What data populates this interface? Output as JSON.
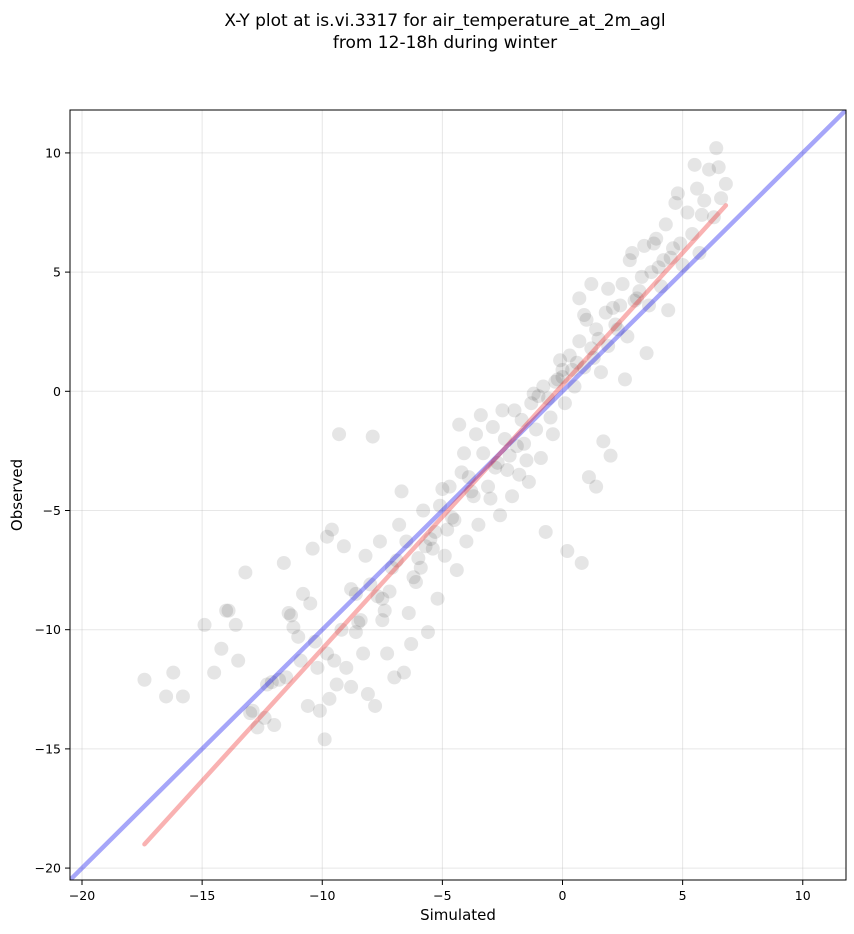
{
  "chart_data": {
    "type": "scatter",
    "title": [
      "X-Y plot at is.vi.3317 for air_temperature_at_2m_agl",
      "from 12-18h during winter"
    ],
    "xlabel": "Simulated",
    "ylabel": "Observed",
    "xlim": [
      -20.5,
      11.8
    ],
    "ylim": [
      -20.5,
      11.8
    ],
    "xticks": [
      -20,
      -15,
      -10,
      -5,
      0,
      5,
      10
    ],
    "yticks": [
      -20,
      -15,
      -10,
      -5,
      0,
      5,
      10
    ],
    "xtick_labels": [
      "−20",
      "−15",
      "−10",
      "−5",
      "0",
      "5",
      "10"
    ],
    "ytick_labels": [
      "−20",
      "−15",
      "−10",
      "−5",
      "0",
      "5",
      "10"
    ],
    "grid": true,
    "marker_color": "#000000",
    "marker_alpha": 0.1,
    "points": {
      "x": [
        -17.4,
        -16.5,
        -16.2,
        -15.8,
        -14.5,
        -14.2,
        -14.0,
        -13.6,
        -13.5,
        -13.2,
        -12.9,
        -12.7,
        -12.4,
        -12.1,
        -11.8,
        -11.6,
        -11.4,
        -11.3,
        -11.0,
        -10.9,
        -10.6,
        -10.4,
        -10.3,
        -10.1,
        -9.9,
        -9.8,
        -9.6,
        -9.4,
        -9.2,
        -9.1,
        -9.0,
        -8.8,
        -8.6,
        -8.5,
        -8.3,
        -8.1,
        -8.0,
        -7.8,
        -7.6,
        -7.5,
        -7.3,
        -7.1,
        -7.0,
        -6.8,
        -6.6,
        -6.4,
        -6.3,
        -6.1,
        -5.9,
        -5.8,
        -5.6,
        -5.4,
        -5.2,
        -5.1,
        -4.9,
        -4.7,
        -4.5,
        -4.4,
        -4.2,
        -4.0,
        -3.8,
        -3.6,
        -3.5,
        -3.3,
        -3.1,
        -2.9,
        -2.7,
        -2.6,
        -2.4,
        -2.2,
        -2.0,
        -1.8,
        -1.7,
        -1.5,
        -1.3,
        -1.1,
        -0.9,
        -0.8,
        -0.6,
        -0.4,
        -0.2,
        0.0,
        0.1,
        0.3,
        0.5,
        0.7,
        0.9,
        1.0,
        1.2,
        1.4,
        1.6,
        1.8,
        1.9,
        2.1,
        2.3,
        2.5,
        2.7,
        2.8,
        3.0,
        3.2,
        3.4,
        3.6,
        3.7,
        3.9,
        4.1,
        4.3,
        4.5,
        4.6,
        4.8,
        5.0,
        5.2,
        5.4,
        5.5,
        5.7,
        5.9,
        6.1,
        6.3,
        6.4,
        6.6,
        6.8,
        -9.3,
        -7.9,
        -14.9,
        -13.9,
        -8.8,
        -9.8,
        -10.5,
        -7.5,
        -6.0,
        -11.2,
        -12.3,
        -10.8,
        -8.2,
        -7.2,
        -5.5,
        -4.8,
        -3.9,
        -3.0,
        -2.3,
        -1.6,
        -0.5,
        0.4,
        1.3,
        2.2,
        3.1,
        4.0,
        4.9,
        5.8,
        -1.0,
        -0.3,
        0.6,
        1.5,
        2.4,
        3.3,
        4.2,
        -2.8,
        -1.9,
        -3.7,
        -4.6,
        -6.9,
        -5.3,
        -6.5,
        -7.7,
        -8.4,
        -9.5,
        -10.2,
        -11.5,
        -12.0,
        -13.0,
        1.1,
        0.8,
        1.7,
        2.0,
        0.2,
        -0.7,
        2.6,
        3.5,
        4.4,
        1.4,
        0.9,
        -1.4,
        -2.1,
        -3.4,
        -4.1,
        -5.0,
        -5.7,
        -6.2,
        -7.4,
        -8.6,
        -9.7,
        -0.1,
        1.9,
        2.9,
        3.8,
        4.7,
        5.6,
        6.5,
        -2.5,
        -4.3,
        -6.7,
        -1.2,
        0.0,
        0.7,
        1.2
      ],
      "y": [
        -12.1,
        -12.8,
        -11.8,
        -12.8,
        -11.8,
        -10.8,
        -9.2,
        -9.8,
        -11.3,
        -7.6,
        -13.4,
        -14.1,
        -13.7,
        -12.2,
        -12.1,
        -7.2,
        -9.3,
        -9.4,
        -10.3,
        -11.3,
        -13.2,
        -6.6,
        -10.5,
        -13.4,
        -14.6,
        -11.0,
        -5.8,
        -12.3,
        -10.0,
        -6.5,
        -11.6,
        -12.4,
        -8.5,
        -9.7,
        -11.0,
        -12.7,
        -8.1,
        -13.2,
        -6.3,
        -9.6,
        -11.0,
        -7.4,
        -12.0,
        -5.6,
        -11.8,
        -9.3,
        -10.6,
        -8.0,
        -7.4,
        -5.0,
        -10.1,
        -6.6,
        -8.7,
        -4.8,
        -6.9,
        -4.0,
        -5.4,
        -7.5,
        -3.4,
        -6.3,
        -4.2,
        -1.8,
        -5.6,
        -2.6,
        -4.0,
        -1.5,
        -3.0,
        -5.2,
        -2.0,
        -2.7,
        -0.8,
        -3.5,
        -1.2,
        -2.9,
        -0.5,
        -1.6,
        -2.8,
        0.2,
        -0.3,
        -1.8,
        0.5,
        0.9,
        -0.5,
        1.5,
        0.2,
        2.1,
        1.0,
        3.0,
        1.8,
        2.6,
        0.8,
        3.3,
        1.9,
        3.5,
        2.6,
        4.5,
        2.3,
        5.5,
        3.8,
        4.2,
        6.1,
        3.6,
        5.0,
        6.4,
        4.4,
        7.0,
        5.6,
        6.0,
        8.3,
        5.3,
        7.5,
        6.6,
        9.5,
        5.8,
        8.0,
        9.3,
        7.3,
        10.2,
        8.1,
        8.7,
        -1.8,
        -1.9,
        -9.8,
        -9.2,
        -8.3,
        -6.1,
        -8.9,
        -8.7,
        -7.0,
        -9.9,
        -12.3,
        -8.5,
        -6.9,
        -8.4,
        -6.2,
        -5.8,
        -3.6,
        -4.5,
        -3.3,
        -2.2,
        -1.1,
        0.9,
        1.4,
        2.8,
        3.9,
        5.2,
        6.2,
        7.4,
        -0.2,
        0.4,
        1.2,
        2.2,
        3.6,
        4.8,
        5.5,
        -3.2,
        -2.3,
        -4.4,
        -5.3,
        -7.1,
        -5.9,
        -6.3,
        -8.6,
        -9.6,
        -11.3,
        -11.6,
        -12.0,
        -14.0,
        -13.5,
        -3.6,
        -7.2,
        -2.1,
        -2.7,
        -6.7,
        -5.9,
        0.5,
        1.6,
        3.4,
        -4.0,
        3.2,
        -3.8,
        -4.4,
        -1.0,
        -2.6,
        -4.1,
        -6.5,
        -7.8,
        -9.2,
        -10.1,
        -12.9,
        1.3,
        4.3,
        5.8,
        6.2,
        7.9,
        8.5,
        9.4,
        -0.8,
        -1.4,
        -4.2,
        -0.1,
        0.6,
        3.9,
        4.5
      ]
    },
    "series": [
      {
        "type": "line",
        "role": "identity",
        "color": "#0000ee",
        "x": [
          -20.5,
          11.8
        ],
        "y": [
          -20.5,
          11.8
        ]
      },
      {
        "type": "line",
        "role": "fit",
        "color": "#ee2222",
        "x": [
          -17.4,
          6.8
        ],
        "y": [
          -19.0,
          7.8
        ]
      }
    ]
  }
}
